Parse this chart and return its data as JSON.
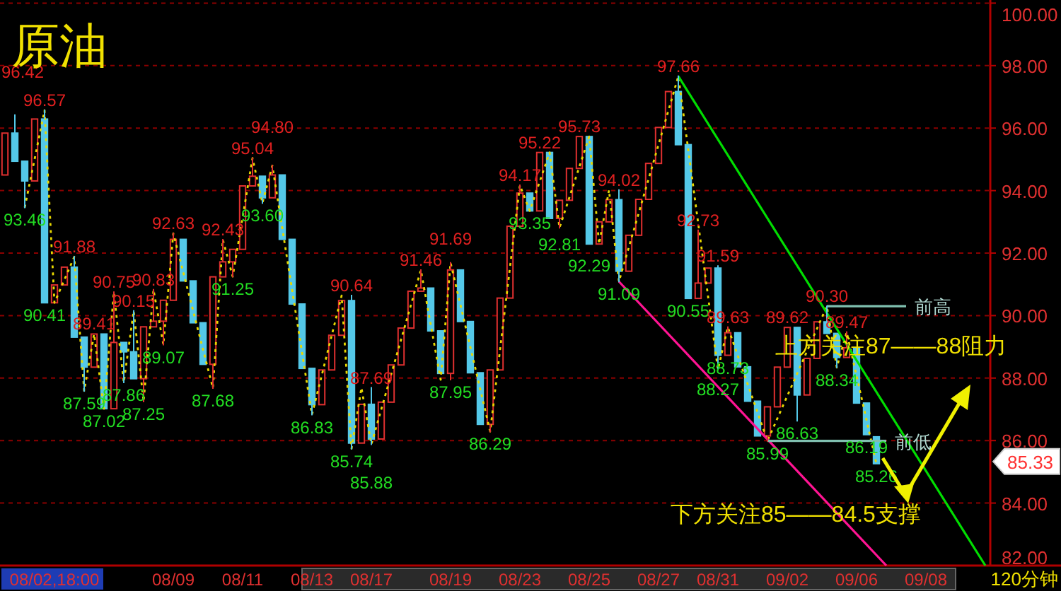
{
  "chart_data": {
    "type": "candlestick",
    "title": "原油",
    "categories": [
      null,
      null,
      null,
      null,
      null,
      "08/02,18:00",
      null,
      null,
      null,
      null,
      null,
      null,
      null,
      null,
      null,
      null,
      null,
      "08/09",
      null,
      null,
      null,
      null,
      null,
      null,
      "08/11",
      null,
      null,
      null,
      null,
      null,
      null,
      "08/13",
      null,
      null,
      null,
      null,
      null,
      "08/17",
      null,
      null,
      null,
      null,
      null,
      null,
      null,
      "08/19",
      null,
      null,
      null,
      null,
      null,
      null,
      "08/23",
      null,
      null,
      null,
      null,
      null,
      null,
      "08/25",
      null,
      null,
      null,
      null,
      null,
      null,
      "08/27",
      null,
      null,
      null,
      null,
      null,
      "08/31",
      null,
      null,
      null,
      null,
      null,
      null,
      "09/02",
      null,
      null,
      null,
      null,
      null,
      null,
      "09/06",
      null,
      null,
      null,
      null,
      null,
      null,
      "09/08",
      null,
      null,
      null,
      null,
      null,
      null
    ],
    "ohlc": [
      [
        94.5,
        95.84,
        94.5,
        95.84
      ],
      [
        95.84,
        96.42,
        94.94,
        94.94
      ],
      [
        94.94,
        94.94,
        93.46,
        94.31
      ],
      [
        94.31,
        96.29,
        94.31,
        96.29
      ],
      [
        96.29,
        96.57,
        90.41,
        90.41
      ],
      [
        90.41,
        90.98,
        90.41,
        90.98
      ],
      [
        90.98,
        91.55,
        90.98,
        91.55
      ],
      [
        91.55,
        91.88,
        89.31,
        89.31
      ],
      [
        89.31,
        89.31,
        87.59,
        88.35
      ],
      [
        88.35,
        89.41,
        88.35,
        89.41
      ],
      [
        89.41,
        89.41,
        87.02,
        87.02
      ],
      [
        87.02,
        90.75,
        87.02,
        89.14
      ],
      [
        89.14,
        89.14,
        87.86,
        88.84
      ],
      [
        88.84,
        90.15,
        87.98,
        87.98
      ],
      [
        87.98,
        89.64,
        87.25,
        89.64
      ],
      [
        89.64,
        90.83,
        89.64,
        89.82
      ],
      [
        89.82,
        90.49,
        89.07,
        90.49
      ],
      [
        90.49,
        92.63,
        90.49,
        92.44
      ],
      [
        92.44,
        92.44,
        91.11,
        91.11
      ],
      [
        91.11,
        91.11,
        89.77,
        89.77
      ],
      [
        89.77,
        89.77,
        88.44,
        88.44
      ],
      [
        88.44,
        91.24,
        87.68,
        91.24
      ],
      [
        91.24,
        92.43,
        91.24,
        91.72
      ],
      [
        91.72,
        92.12,
        91.25,
        92.12
      ],
      [
        92.12,
        94.15,
        92.12,
        94.15
      ],
      [
        94.15,
        95.04,
        94.15,
        94.46
      ],
      [
        94.46,
        94.46,
        93.6,
        93.77
      ],
      [
        93.77,
        94.8,
        93.77,
        94.5
      ],
      [
        94.5,
        94.5,
        92.44,
        92.44
      ],
      [
        92.44,
        92.44,
        90.37,
        90.37
      ],
      [
        90.37,
        90.37,
        88.31,
        88.31
      ],
      [
        88.31,
        88.31,
        86.83,
        87.15
      ],
      [
        87.15,
        88.26,
        87.15,
        88.26
      ],
      [
        88.26,
        89.37,
        88.26,
        89.37
      ],
      [
        89.37,
        90.48,
        89.37,
        90.48
      ],
      [
        90.48,
        90.64,
        85.74,
        85.92
      ],
      [
        85.92,
        87.16,
        85.92,
        87.16
      ],
      [
        87.16,
        87.69,
        85.88,
        86.05
      ],
      [
        86.05,
        87.23,
        86.05,
        87.23
      ],
      [
        87.23,
        88.42,
        87.23,
        88.42
      ],
      [
        88.42,
        89.6,
        88.42,
        89.6
      ],
      [
        89.6,
        90.78,
        89.6,
        90.78
      ],
      [
        90.78,
        91.46,
        90.78,
        90.88
      ],
      [
        90.88,
        90.88,
        89.51,
        89.51
      ],
      [
        89.51,
        89.51,
        88.15,
        88.15
      ],
      [
        88.15,
        91.69,
        87.95,
        91.46
      ],
      [
        91.46,
        91.46,
        89.81,
        89.81
      ],
      [
        89.81,
        89.81,
        88.17,
        88.17
      ],
      [
        88.17,
        88.17,
        86.52,
        86.52
      ],
      [
        86.52,
        88.26,
        86.29,
        88.26
      ],
      [
        88.26,
        90.56,
        88.26,
        90.56
      ],
      [
        90.56,
        92.86,
        90.56,
        92.86
      ],
      [
        92.86,
        94.17,
        92.86,
        93.92
      ],
      [
        93.92,
        93.92,
        93.35,
        93.35
      ],
      [
        93.35,
        95.22,
        93.35,
        95.22
      ],
      [
        95.22,
        95.22,
        93.11,
        93.11
      ],
      [
        93.11,
        93.69,
        92.81,
        93.69
      ],
      [
        93.69,
        94.71,
        93.69,
        94.71
      ],
      [
        94.71,
        95.73,
        94.71,
        95.73
      ],
      [
        95.73,
        95.73,
        92.29,
        92.29
      ],
      [
        92.29,
        93.0,
        92.29,
        93.0
      ],
      [
        93.0,
        93.71,
        93.0,
        93.71
      ],
      [
        93.71,
        94.02,
        91.09,
        91.42
      ],
      [
        91.42,
        92.57,
        91.42,
        92.57
      ],
      [
        92.57,
        93.72,
        92.57,
        93.72
      ],
      [
        93.72,
        94.87,
        93.72,
        94.87
      ],
      [
        94.87,
        96.02,
        94.87,
        96.02
      ],
      [
        96.02,
        97.17,
        96.02,
        97.17
      ],
      [
        97.17,
        97.66,
        95.47,
        95.47
      ],
      [
        95.47,
        95.47,
        90.55,
        90.55
      ],
      [
        90.55,
        92.73,
        90.55,
        91.04
      ],
      [
        91.04,
        91.52,
        91.04,
        91.52
      ],
      [
        91.52,
        91.59,
        88.27,
        88.73
      ],
      [
        88.73,
        89.63,
        88.73,
        89.45
      ],
      [
        89.45,
        89.45,
        88.36,
        88.36
      ],
      [
        88.36,
        88.36,
        87.26,
        87.26
      ],
      [
        87.26,
        87.26,
        86.15,
        86.15
      ],
      [
        86.15,
        87.08,
        85.99,
        87.08
      ],
      [
        87.08,
        88.35,
        87.08,
        88.35
      ],
      [
        88.35,
        89.62,
        88.35,
        89.62
      ],
      [
        89.62,
        89.62,
        86.63,
        87.46
      ],
      [
        87.46,
        88.63,
        87.46,
        88.63
      ],
      [
        88.63,
        89.8,
        88.63,
        89.8
      ],
      [
        89.8,
        90.3,
        89.43,
        89.43
      ],
      [
        89.43,
        89.43,
        88.34,
        88.66
      ],
      [
        88.66,
        89.47,
        88.66,
        88.97
      ],
      [
        88.97,
        88.97,
        87.2,
        87.2
      ],
      [
        87.2,
        87.2,
        86.19,
        86.19
      ],
      [
        86.12,
        86.12,
        85.26,
        85.26
      ],
      null,
      null,
      null,
      null,
      null,
      null,
      null,
      null,
      null,
      null,
      null
    ],
    "ylim": [
      82,
      100.1
    ],
    "yticks": [
      {
        "value": 82,
        "label": "82.00"
      },
      {
        "value": 84,
        "label": "84.00"
      },
      {
        "value": 86,
        "label": "86.00"
      },
      {
        "value": 88,
        "label": "88.00"
      },
      {
        "value": 90,
        "label": "90.00"
      },
      {
        "value": 92,
        "label": "92.00"
      },
      {
        "value": 94,
        "label": "94.00"
      },
      {
        "value": 96,
        "label": "96.00"
      },
      {
        "value": 98,
        "label": "98.00"
      },
      {
        "value": 100,
        "label": "100.00"
      }
    ],
    "grid": "y",
    "series": [
      {
        "type": "line",
        "values": [
          null,
          null,
          93.46,
          null,
          96.57,
          90.41,
          null,
          91.88,
          87.59,
          89.41,
          87.02,
          90.75,
          87.86,
          90.15,
          87.25,
          90.83,
          89.07,
          92.63,
          null,
          null,
          null,
          87.68,
          92.43,
          91.25,
          null,
          95.04,
          93.6,
          94.8,
          null,
          null,
          null,
          86.83,
          null,
          null,
          90.64,
          85.74,
          87.69,
          85.88,
          null,
          null,
          null,
          null,
          91.46,
          null,
          87.95,
          91.69,
          null,
          null,
          null,
          86.29,
          null,
          null,
          94.17,
          93.35,
          null,
          95.22,
          92.81,
          null,
          null,
          95.73,
          92.29,
          94.02,
          91.09,
          null,
          null,
          null,
          null,
          null,
          97.66,
          null,
          null,
          null,
          88.27,
          89.63,
          null,
          null,
          null,
          85.99,
          null,
          null,
          null,
          null,
          null,
          90.3,
          88.34,
          89.47,
          null,
          null,
          85.26,
          null,
          null,
          null,
          null,
          null,
          null,
          null,
          null,
          null,
          null,
          null
        ],
        "color": "#e8d800",
        "line_style": "dotted"
      },
      {
        "type": "line",
        "values": [
          null,
          null,
          null,
          null,
          null,
          null,
          null,
          null,
          null,
          null,
          null,
          null,
          null,
          null,
          null,
          null,
          null,
          null,
          null,
          null,
          null,
          null,
          null,
          null,
          null,
          null,
          null,
          null,
          null,
          null,
          null,
          null,
          null,
          null,
          null,
          null,
          null,
          null,
          null,
          null,
          null,
          null,
          null,
          null,
          null,
          null,
          null,
          null,
          null,
          null,
          null,
          null,
          null,
          null,
          null,
          null,
          null,
          null,
          null,
          null,
          null,
          null,
          null,
          null,
          null,
          null,
          null,
          null,
          97.66,
          null,
          null,
          null,
          null,
          null,
          null,
          null,
          null,
          null,
          null,
          null,
          null,
          null,
          null,
          null,
          null,
          null,
          null,
          null,
          null,
          null,
          null,
          null,
          null,
          null,
          null,
          null,
          null,
          null,
          null,
          82.0
        ],
        "color": "#00dd00",
        "line_style": "solid"
      },
      {
        "type": "line",
        "values": [
          null,
          null,
          null,
          null,
          null,
          null,
          null,
          null,
          null,
          null,
          null,
          null,
          null,
          null,
          null,
          null,
          null,
          null,
          null,
          null,
          null,
          null,
          null,
          null,
          null,
          null,
          null,
          null,
          null,
          null,
          null,
          null,
          null,
          null,
          null,
          null,
          null,
          null,
          null,
          null,
          null,
          null,
          null,
          null,
          null,
          null,
          null,
          null,
          null,
          null,
          null,
          null,
          null,
          null,
          null,
          null,
          null,
          null,
          null,
          null,
          null,
          null,
          91.09,
          null,
          null,
          null,
          null,
          null,
          null,
          null,
          null,
          null,
          null,
          null,
          null,
          null,
          null,
          null,
          null,
          null,
          null,
          null,
          null,
          null,
          null,
          null,
          null,
          null,
          null,
          82.0,
          null,
          null,
          null,
          null,
          null,
          null,
          null,
          null,
          null,
          null
        ],
        "color": "#ff1493",
        "line_style": "solid"
      },
      {
        "type": "line",
        "name": "前高",
        "values": [
          null,
          null,
          null,
          null,
          null,
          null,
          null,
          null,
          null,
          null,
          null,
          null,
          null,
          null,
          null,
          null,
          null,
          null,
          null,
          null,
          null,
          null,
          null,
          null,
          null,
          null,
          null,
          null,
          null,
          null,
          null,
          null,
          null,
          null,
          null,
          null,
          null,
          null,
          null,
          null,
          null,
          null,
          null,
          null,
          null,
          null,
          null,
          null,
          null,
          null,
          null,
          null,
          null,
          null,
          null,
          null,
          null,
          null,
          null,
          null,
          null,
          null,
          null,
          null,
          null,
          null,
          null,
          null,
          null,
          null,
          null,
          null,
          null,
          null,
          null,
          null,
          null,
          null,
          null,
          null,
          null,
          null,
          null,
          90.3,
          null,
          null,
          null,
          null,
          null,
          null,
          null,
          90.3,
          null,
          null,
          null,
          null,
          null,
          null,
          null,
          null
        ],
        "color": "#80c0b0",
        "line_style": "solid"
      },
      {
        "type": "line",
        "name": "前低",
        "values": [
          null,
          null,
          null,
          null,
          null,
          null,
          null,
          null,
          null,
          null,
          null,
          null,
          null,
          null,
          null,
          null,
          null,
          null,
          null,
          null,
          null,
          null,
          null,
          null,
          null,
          null,
          null,
          null,
          null,
          null,
          null,
          null,
          null,
          null,
          null,
          null,
          null,
          null,
          null,
          null,
          null,
          null,
          null,
          null,
          null,
          null,
          null,
          null,
          null,
          null,
          null,
          null,
          null,
          null,
          null,
          null,
          null,
          null,
          null,
          null,
          null,
          null,
          null,
          null,
          null,
          null,
          null,
          null,
          null,
          null,
          null,
          null,
          null,
          null,
          null,
          null,
          null,
          85.99,
          null,
          null,
          null,
          null,
          null,
          null,
          null,
          null,
          null,
          null,
          null,
          85.99,
          null,
          null,
          null,
          null,
          null,
          null,
          null,
          null,
          null,
          null
        ],
        "color": "#80c0b0",
        "line_style": "solid"
      }
    ],
    "annotations": [
      "96.42",
      {
        "text": "96.57",
        "y": 96.57
      },
      {
        "text": "93.46",
        "y": 93.46
      },
      {
        "text": "90.41",
        "y": 90.41
      },
      {
        "text": "91.88",
        "y": 91.88
      },
      {
        "text": "87.59",
        "y": 87.59
      },
      {
        "text": "89.41",
        "y": 89.41
      },
      {
        "text": "87.02",
        "y": 87.02
      },
      {
        "text": "90.75",
        "y": 90.75
      },
      {
        "text": "87.86",
        "y": 87.86
      },
      {
        "text": "90.15",
        "y": 90.15
      },
      {
        "text": "87.25",
        "y": 87.25
      },
      {
        "text": "90.83",
        "y": 90.83
      },
      {
        "text": "89.07",
        "y": 89.07
      },
      {
        "text": "92.63",
        "y": 92.63
      },
      {
        "text": "87.68",
        "y": 87.68
      },
      {
        "text": "92.43",
        "y": 92.43
      },
      {
        "text": "91.25",
        "y": 91.25
      },
      {
        "text": "95.04",
        "y": 95.04
      },
      {
        "text": "93.60",
        "y": 93.6
      },
      {
        "text": "94.80",
        "y": 94.8
      },
      {
        "text": "86.83",
        "y": 86.83
      },
      {
        "text": "90.64",
        "y": 90.64
      },
      {
        "text": "85.74",
        "y": 85.74
      },
      {
        "text": "87.69",
        "y": 87.69
      },
      {
        "text": "85.88",
        "y": 85.88
      },
      {
        "text": "91.46",
        "y": 91.46
      },
      {
        "text": "87.95",
        "y": 87.95
      },
      {
        "text": "91.69",
        "y": 91.69
      },
      {
        "text": "86.29",
        "y": 86.29
      },
      {
        "text": "94.17",
        "y": 94.17
      },
      {
        "text": "93.35",
        "y": 93.35
      },
      {
        "text": "95.22",
        "y": 95.22
      },
      {
        "text": "92.81",
        "y": 92.81
      },
      {
        "text": "95.73",
        "y": 95.73
      },
      {
        "text": "92.29",
        "y": 92.29
      },
      {
        "text": "94.02",
        "y": 94.02
      },
      {
        "text": "91.09",
        "y": 91.09
      },
      {
        "text": "97.66",
        "y": 97.66
      },
      {
        "text": "92.73",
        "y": 92.73
      },
      {
        "text": "90.55",
        "y": 90.55
      },
      {
        "text": "91.59",
        "y": 91.59
      },
      {
        "text": "88.73",
        "y": 88.73
      },
      {
        "text": "88.27",
        "y": 88.27
      },
      {
        "text": "89.63",
        "y": 89.63
      },
      {
        "text": "85.99",
        "y": 85.99
      },
      {
        "text": "89.62",
        "y": 89.62
      },
      {
        "text": "86.63",
        "y": 86.63
      },
      {
        "text": "90.30",
        "y": 90.3
      },
      {
        "text": "88.34",
        "y": 88.34
      },
      {
        "text": "89.47",
        "y": 89.47
      },
      {
        "text": "86.19",
        "y": 86.19
      },
      {
        "text": "85.26",
        "y": 85.26
      },
      "85.33",
      "上方关注87——88阻力",
      "下方关注85——84.5支撑",
      "120分钟"
    ]
  }
}
